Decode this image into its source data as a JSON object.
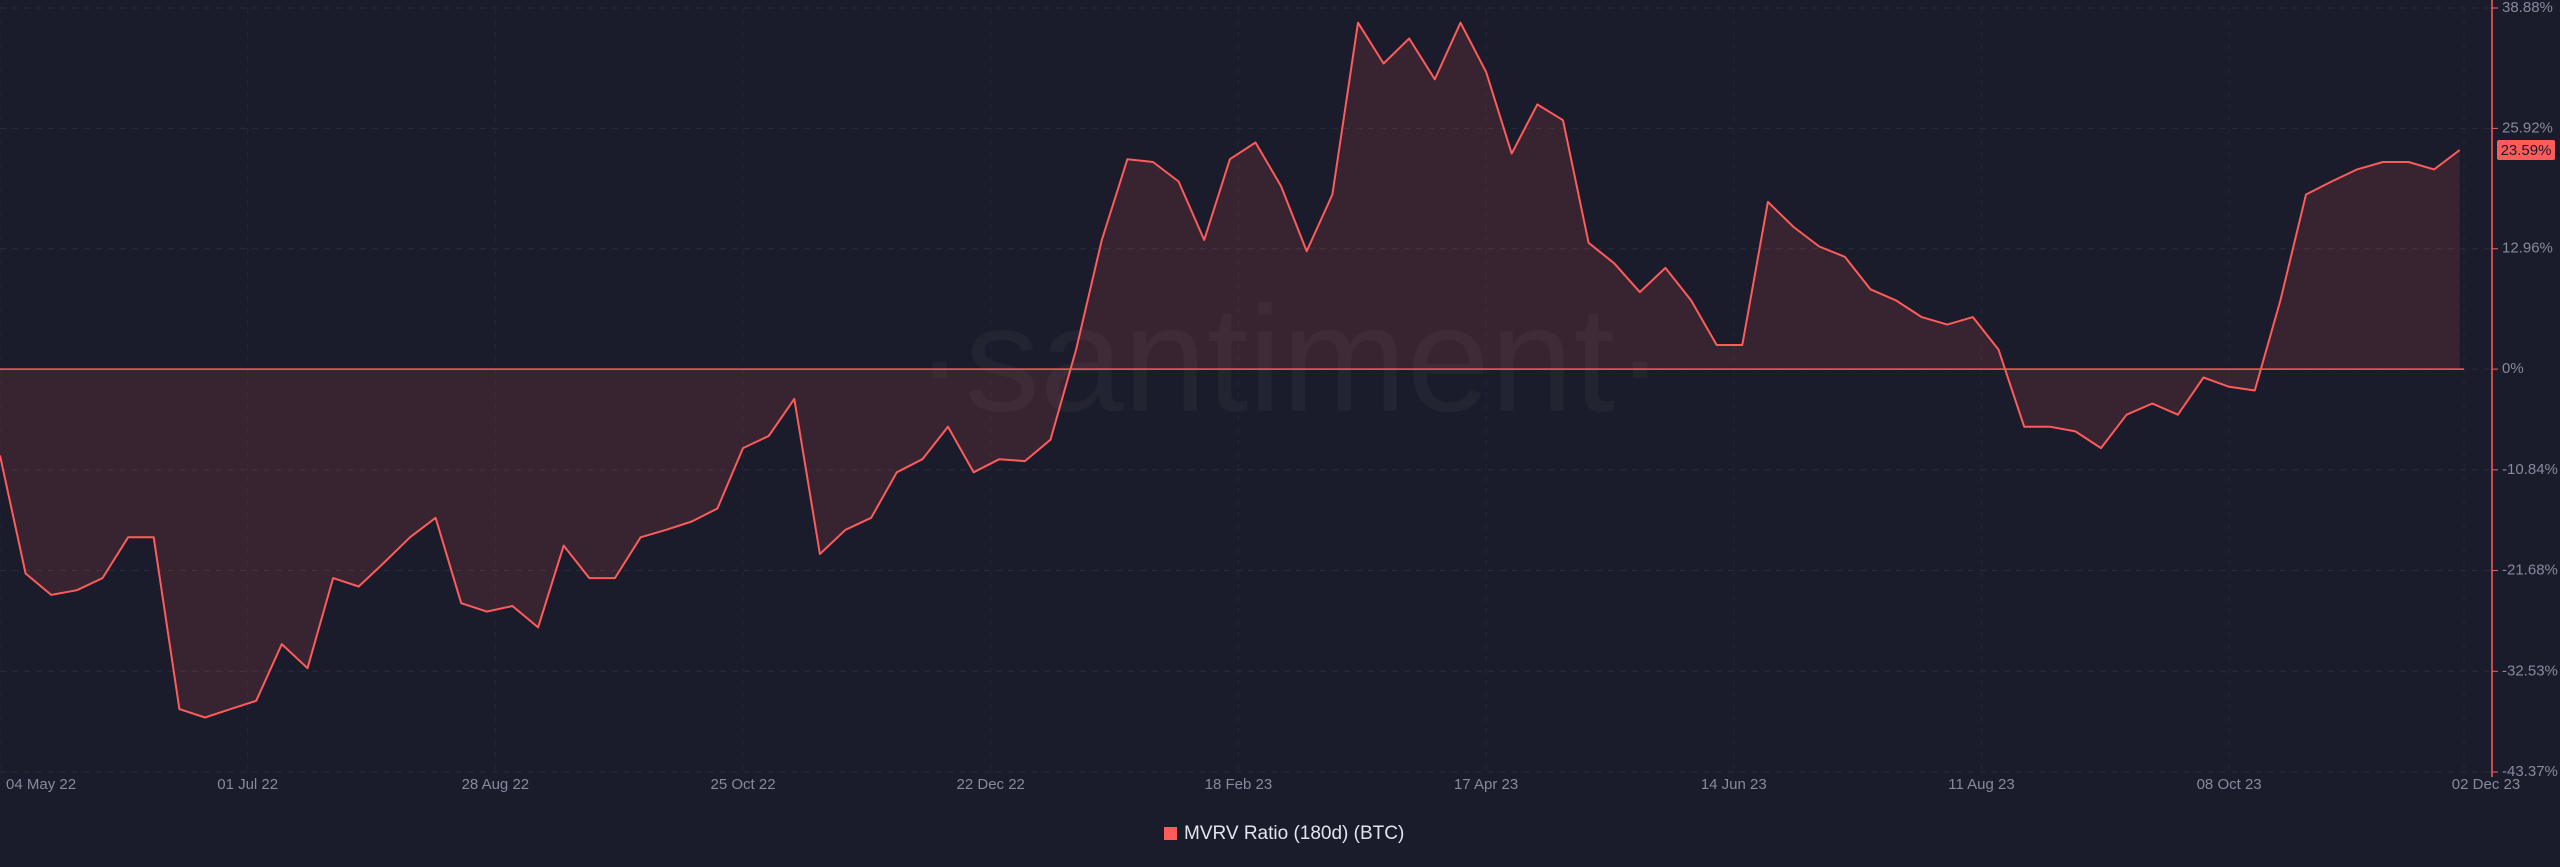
{
  "chart_data": {
    "type": "area",
    "watermark": "·santiment·",
    "x": [
      "2022-05-04",
      "2022-05-10",
      "2022-05-16",
      "2022-05-22",
      "2022-05-28",
      "2022-06-03",
      "2022-06-09",
      "2022-06-15",
      "2022-06-21",
      "2022-06-27",
      "2022-07-03",
      "2022-07-09",
      "2022-07-15",
      "2022-07-21",
      "2022-07-27",
      "2022-08-02",
      "2022-08-08",
      "2022-08-14",
      "2022-08-20",
      "2022-08-26",
      "2022-09-01",
      "2022-09-07",
      "2022-09-13",
      "2022-09-19",
      "2022-09-25",
      "2022-10-01",
      "2022-10-07",
      "2022-10-13",
      "2022-10-19",
      "2022-10-25",
      "2022-10-31",
      "2022-11-06",
      "2022-11-12",
      "2022-11-18",
      "2022-11-24",
      "2022-11-30",
      "2022-12-06",
      "2022-12-12",
      "2022-12-18",
      "2022-12-24",
      "2022-12-30",
      "2023-01-05",
      "2023-01-11",
      "2023-01-17",
      "2023-01-23",
      "2023-01-29",
      "2023-02-04",
      "2023-02-10",
      "2023-02-16",
      "2023-02-22",
      "2023-02-28",
      "2023-03-06",
      "2023-03-12",
      "2023-03-18",
      "2023-03-24",
      "2023-03-30",
      "2023-04-05",
      "2023-04-11",
      "2023-04-17",
      "2023-04-23",
      "2023-04-29",
      "2023-05-05",
      "2023-05-11",
      "2023-05-17",
      "2023-05-23",
      "2023-05-29",
      "2023-06-04",
      "2023-06-10",
      "2023-06-16",
      "2023-06-22",
      "2023-06-28",
      "2023-07-04",
      "2023-07-10",
      "2023-07-16",
      "2023-07-22",
      "2023-07-28",
      "2023-08-03",
      "2023-08-09",
      "2023-08-15",
      "2023-08-21",
      "2023-08-27",
      "2023-09-02",
      "2023-09-08",
      "2023-09-14",
      "2023-09-20",
      "2023-09-26",
      "2023-10-02",
      "2023-10-08",
      "2023-10-14",
      "2023-10-20",
      "2023-10-26",
      "2023-11-01",
      "2023-11-07",
      "2023-11-13",
      "2023-11-19",
      "2023-11-25",
      "2023-12-01"
    ],
    "series": [
      {
        "name": "MVRV Ratio (180d) (BTC)",
        "color": "#ff5b5b",
        "values": [
          -9.3,
          -22,
          -24.3,
          -23.8,
          -22.5,
          -18.1,
          -18.1,
          -36.6,
          -37.5,
          -36.6,
          -35.7,
          -29.6,
          -32.2,
          -22.5,
          -23.4,
          -20.8,
          -18.1,
          -16.0,
          -25.2,
          -26.1,
          -25.5,
          -27.8,
          -19.0,
          -22.5,
          -22.5,
          -18.1,
          -17.3,
          -16.4,
          -15.0,
          -8.5,
          -7.2,
          -3.2,
          -19.9,
          -17.3,
          -16.0,
          -11.1,
          -9.7,
          -6.2,
          -11.1,
          -9.7,
          -9.9,
          -7.6,
          2.1,
          13.9,
          22.6,
          22.3,
          20.2,
          13.9,
          22.6,
          24.4,
          19.7,
          12.7,
          18.8,
          37.3,
          32.9,
          35.6,
          31.2,
          37.3,
          32.0,
          23.2,
          28.5,
          26.8,
          13.6,
          11.4,
          8.3,
          10.9,
          7.4,
          2.6,
          2.6,
          18.0,
          15.3,
          13.2,
          12.1,
          8.6,
          7.4,
          5.6,
          4.8,
          5.6,
          2.1,
          -6.2,
          -6.2,
          -6.7,
          -8.5,
          -4.9,
          -3.7,
          -4.9,
          -0.9,
          -1.9,
          -2.3,
          7.4,
          18.8,
          20.2,
          21.5,
          22.3,
          22.3,
          21.5,
          23.59
        ]
      }
    ],
    "last_value": {
      "value": 23.59,
      "label": "23.59%"
    },
    "xlim": [
      "2022-05-04",
      "2023-12-02"
    ],
    "xticks": [
      {
        "value": "2022-05-04",
        "label": "04 May 22"
      },
      {
        "value": "2022-07-01",
        "label": "01 Jul 22"
      },
      {
        "value": "2022-08-28",
        "label": "28 Aug 22"
      },
      {
        "value": "2022-10-25",
        "label": "25 Oct 22"
      },
      {
        "value": "2022-12-22",
        "label": "22 Dec 22"
      },
      {
        "value": "2023-02-18",
        "label": "18 Feb 23"
      },
      {
        "value": "2023-04-17",
        "label": "17 Apr 23"
      },
      {
        "value": "2023-06-14",
        "label": "14 Jun 23"
      },
      {
        "value": "2023-08-11",
        "label": "11 Aug 23"
      },
      {
        "value": "2023-10-08",
        "label": "08 Oct 23"
      },
      {
        "value": "2023-12-02",
        "label": "02 Dec 23"
      }
    ],
    "ylim": [
      -43.37,
      38.88
    ],
    "yticks": [
      {
        "value": 38.88,
        "label": "38.88%"
      },
      {
        "value": 25.92,
        "label": "25.92%"
      },
      {
        "value": 12.96,
        "label": "12.96%"
      },
      {
        "value": 0,
        "label": "0%"
      },
      {
        "value": -10.84,
        "label": "-10.84%"
      },
      {
        "value": -21.68,
        "label": "-21.68%"
      },
      {
        "value": -32.53,
        "label": "-32.53%"
      },
      {
        "value": -43.37,
        "label": "-43.37%"
      }
    ],
    "grid": true
  }
}
